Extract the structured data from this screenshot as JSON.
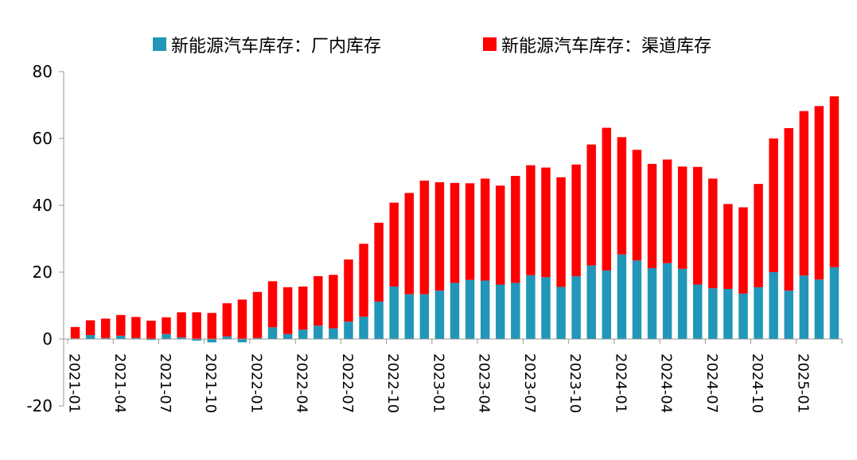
{
  "chart_data": {
    "type": "bar",
    "stacked": true,
    "ylim": [
      -20,
      80
    ],
    "yticks": [
      -20,
      0,
      20,
      40,
      60,
      80
    ],
    "legend_position": "top",
    "grid": false,
    "colors": {
      "factory": "#2196B8",
      "channel": "#FF0000"
    },
    "x": [
      "2021-01",
      "2021-02",
      "2021-03",
      "2021-04",
      "2021-05",
      "2021-06",
      "2021-07",
      "2021-08",
      "2021-09",
      "2021-10",
      "2021-11",
      "2021-12",
      "2022-01",
      "2022-02",
      "2022-03",
      "2022-04",
      "2022-05",
      "2022-06",
      "2022-07",
      "2022-08",
      "2022-09",
      "2022-10",
      "2022-11",
      "2022-12",
      "2023-01",
      "2023-02",
      "2023-03",
      "2023-04",
      "2023-05",
      "2023-06",
      "2023-07",
      "2023-08",
      "2023-09",
      "2023-10",
      "2023-11",
      "2023-12",
      "2024-01",
      "2024-02",
      "2024-03",
      "2024-04",
      "2024-05",
      "2024-06",
      "2024-07",
      "2024-08",
      "2024-09",
      "2024-10",
      "2024-11",
      "2024-12",
      "2025-01",
      "2025-02",
      "2025-03"
    ],
    "xtick_labels": [
      "2021-01",
      "2021-04",
      "2021-07",
      "2021-10",
      "2022-01",
      "2022-04",
      "2022-07",
      "2022-10",
      "2023-01",
      "2023-04",
      "2023-07",
      "2023-10",
      "2024-01",
      "2024-04",
      "2024-07",
      "2024-10",
      "2025-01"
    ],
    "series": [
      {
        "name": "新能源汽车库存：厂内库存",
        "values": [
          0.2,
          1.2,
          0.3,
          1.0,
          0.3,
          -0.3,
          1.5,
          0.5,
          -0.5,
          -1.0,
          0.8,
          -1.0,
          0.3,
          3.5,
          1.5,
          2.8,
          4.0,
          3.2,
          5.2,
          6.7,
          11.2,
          15.7,
          13.4,
          13.4,
          14.5,
          16.8,
          17.7,
          17.5,
          16.3,
          16.8,
          19.1,
          18.5,
          15.6,
          18.8,
          22.0,
          20.5,
          25.3,
          23.5,
          21.2,
          22.7,
          21.0,
          16.3,
          15.2,
          15.0,
          13.6,
          15.5,
          20.0,
          14.5,
          19.0,
          17.8,
          21.5
        ]
      },
      {
        "name": "新能源汽车库存：渠道库存",
        "values": [
          3.4,
          4.4,
          5.8,
          6.2,
          6.3,
          5.5,
          5.0,
          7.5,
          8.0,
          7.8,
          9.9,
          11.8,
          13.8,
          13.8,
          14.0,
          12.9,
          14.8,
          16.0,
          18.6,
          21.8,
          23.6,
          25.1,
          30.3,
          34.0,
          32.4,
          29.9,
          28.9,
          30.5,
          29.6,
          32.0,
          32.9,
          32.8,
          32.8,
          33.4,
          36.2,
          42.7,
          35.1,
          33.1,
          31.2,
          31.0,
          30.6,
          35.2,
          32.8,
          25.4,
          25.8,
          30.9,
          40.0,
          48.6,
          49.2,
          51.9,
          51.1
        ]
      }
    ]
  }
}
